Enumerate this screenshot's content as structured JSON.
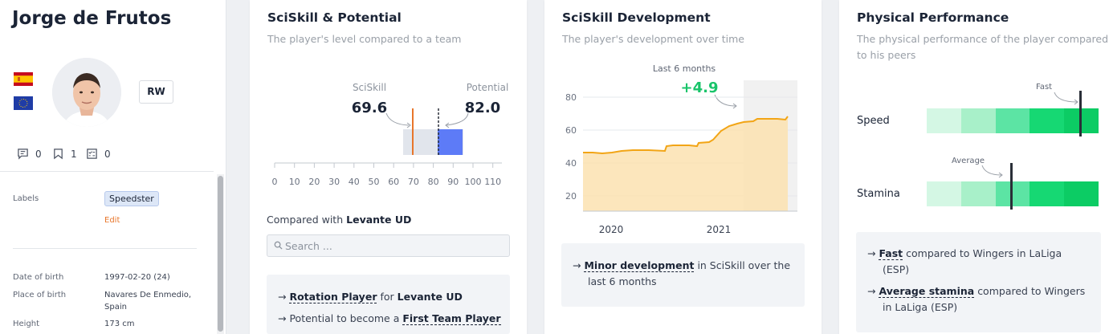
{
  "player": {
    "name": "Jorge de Frutos",
    "position": "RW",
    "counts": {
      "comments": "0",
      "bookmarks": "1",
      "tasks": "0"
    },
    "labels_label": "Labels",
    "tag": "Speedster",
    "edit": "Edit",
    "info": [
      {
        "label": "Date of birth",
        "value": "1997-02-20 (24)"
      },
      {
        "label": "Place of birth",
        "value": "Navares De Enmedio, Spain"
      },
      {
        "label": "Height",
        "value": "173 cm"
      }
    ],
    "flags": [
      "spain-flag",
      "eu-flag"
    ]
  },
  "sciskill": {
    "title": "SciSkill & Potential",
    "subtitle": "The player's level compared to a team",
    "sciskill_label": "SciSkill",
    "sciskill_value": "69.6",
    "potential_label": "Potential",
    "potential_value": "82.0",
    "axis_ticks": [
      "0",
      "10",
      "20",
      "30",
      "40",
      "50",
      "60",
      "70",
      "80",
      "90",
      "100",
      "110"
    ],
    "compare_prefix": "Compared with",
    "compare_team": "Levante UD",
    "search_placeholder": "Search ...",
    "line1_arrow": "→",
    "line1_link": "Rotation Player",
    "line1_mid": "for",
    "line1_team": "Levante UD",
    "line2_arrow": "→",
    "line2_text": "Potential to become a",
    "line2_link": "First Team Player"
  },
  "development": {
    "title": "SciSkill Development",
    "subtitle": "The player's development over time",
    "last6": "Last 6 months",
    "delta": "+4.9",
    "y_ticks": [
      "80",
      "60",
      "40",
      "20"
    ],
    "x_ticks": [
      "2020",
      "2021"
    ],
    "arrow": "→",
    "summary_link": "Minor development",
    "summary_rest": "in SciSkill over the",
    "summary_rest2": "last 6 months"
  },
  "physical": {
    "title": "Physical Performance",
    "subtitle_l1": "The physical performance of the player compared",
    "subtitle_l2": "to his peers",
    "speed_label": "Speed",
    "speed_annot": "Fast",
    "stamina_label": "Stamina",
    "stamina_annot": "Average",
    "line1_arrow": "→",
    "line1_link": "Fast",
    "line1_rest": "compared to Wingers in LaLiga",
    "line1_rest2": "(ESP)",
    "line2_arrow": "→",
    "line2_link": "Average stamina",
    "line2_rest": "compared to Wingers",
    "line2_rest2": "in LaLiga (ESP)"
  },
  "colors": {
    "sciskill_line": "#e8762b",
    "potential_bar": "#5d7bf7",
    "dev_line": "#f2a516",
    "dev_fill": "#fbe2b0",
    "delta": "#19c46a",
    "green_scale": [
      "#d4f7e4",
      "#a8f0c9",
      "#5ce4a4",
      "#16d873",
      "#0ccc64"
    ]
  }
}
